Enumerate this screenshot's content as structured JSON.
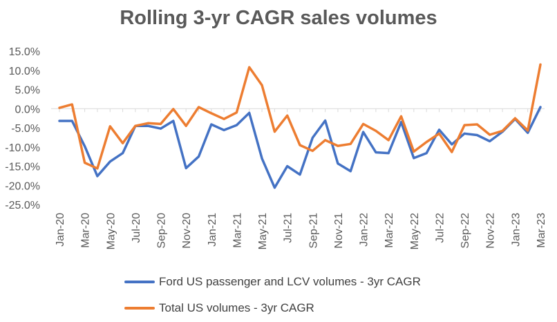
{
  "chart_data": {
    "type": "line",
    "title": "Rolling 3-yr CAGR sales volumes",
    "xlabel": "",
    "ylabel": "",
    "ylim": [
      -25,
      15
    ],
    "y_ticks": [
      "15.0%",
      "10.0%",
      "5.0%",
      "0.0%",
      "-5.0%",
      "-10.0%",
      "-15.0%",
      "-20.0%",
      "-25.0%"
    ],
    "y_tick_values": [
      15,
      10,
      5,
      0,
      -5,
      -10,
      -15,
      -20,
      -25
    ],
    "x_tick_labels": [
      "Jan-20",
      "Mar-20",
      "May-20",
      "Jul-20",
      "Sep-20",
      "Nov-20",
      "Jan-21",
      "Mar-21",
      "May-21",
      "Jul-21",
      "Sep-21",
      "Nov-21",
      "Jan-22",
      "Mar-22",
      "May-22",
      "Jul-22",
      "Sep-22",
      "Nov-22",
      "Jan-23",
      "Mar-23"
    ],
    "x": [
      "Jan-20",
      "Feb-20",
      "Mar-20",
      "Apr-20",
      "May-20",
      "Jun-20",
      "Jul-20",
      "Aug-20",
      "Sep-20",
      "Oct-20",
      "Nov-20",
      "Dec-20",
      "Jan-21",
      "Feb-21",
      "Mar-21",
      "Apr-21",
      "May-21",
      "Jun-21",
      "Jul-21",
      "Aug-21",
      "Sep-21",
      "Oct-21",
      "Nov-21",
      "Dec-21",
      "Jan-22",
      "Feb-22",
      "Mar-22",
      "Apr-22",
      "May-22",
      "Jun-22",
      "Jul-22",
      "Aug-22",
      "Sep-22",
      "Oct-22",
      "Nov-22",
      "Dec-22",
      "Jan-23",
      "Feb-23",
      "Mar-23"
    ],
    "grid": false,
    "legend_position": "bottom",
    "series": [
      {
        "name": "Ford US passenger and LCV volumes - 3yr CAGR",
        "color": "#4472C4",
        "values": [
          -3.2,
          -3.2,
          -9.8,
          -17.6,
          -13.8,
          -11.6,
          -4.5,
          -4.5,
          -5.2,
          -3.2,
          -15.5,
          -12.5,
          -4.1,
          -5.6,
          -4.3,
          -1.1,
          -13.0,
          -20.6,
          -15.0,
          -17.2,
          -7.6,
          -3.1,
          -14.3,
          -16.3,
          -6.1,
          -11.4,
          -11.6,
          -3.5,
          -12.9,
          -11.6,
          -5.5,
          -9.3,
          -6.5,
          -6.9,
          -8.5,
          -6.0,
          -2.7,
          -6.3,
          0.4
        ]
      },
      {
        "name": "Total US volumes - 3yr CAGR",
        "color": "#ED7D31",
        "values": [
          0.2,
          1.1,
          -14.1,
          -15.6,
          -4.6,
          -9.0,
          -4.5,
          -3.8,
          -4.0,
          -0.1,
          -4.5,
          0.4,
          -1.2,
          -2.7,
          -1.0,
          10.8,
          6.1,
          -6.0,
          -1.8,
          -9.5,
          -11.0,
          -8.2,
          -9.7,
          -9.2,
          -4.0,
          -5.8,
          -8.2,
          -2.0,
          -11.2,
          -8.7,
          -6.5,
          -11.3,
          -4.3,
          -4.1,
          -6.8,
          -5.8,
          -2.5,
          -5.7,
          11.5
        ]
      }
    ]
  }
}
